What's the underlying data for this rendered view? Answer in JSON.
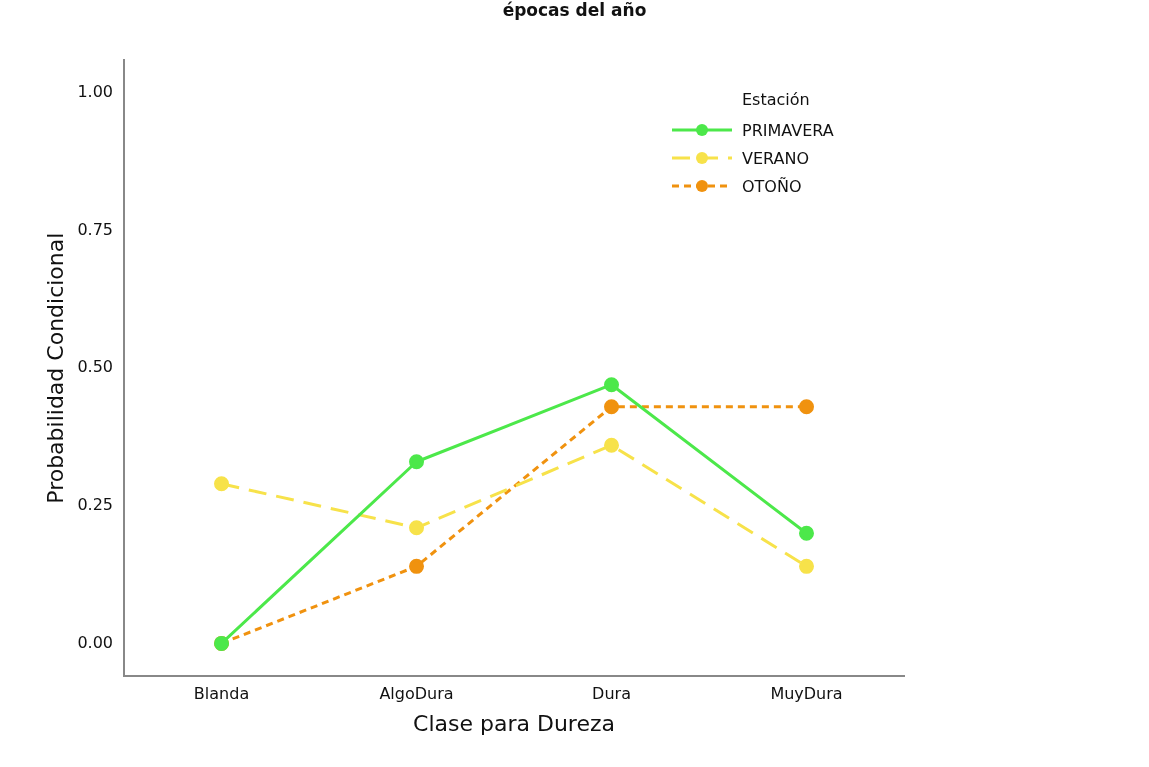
{
  "chart_data": {
    "type": "line",
    "title": "épocas del año",
    "xlabel": "Clase para Dureza",
    "ylabel": "Probabilidad Condicional",
    "legend_title": "Estación",
    "legend": "top right",
    "marker": "circle",
    "grid": false,
    "categories": [
      "Blanda",
      "AlgoDura",
      "Dura",
      "MuyDura"
    ],
    "ylim": [
      -0.06,
      1.06
    ],
    "yticks": [
      {
        "value": 0,
        "label": "0.00"
      },
      {
        "value": 0.25,
        "label": "0.25"
      },
      {
        "value": 0.5,
        "label": "0.50"
      },
      {
        "value": 0.75,
        "label": "0.75"
      },
      {
        "value": 1,
        "label": "1.00"
      }
    ],
    "series": [
      {
        "name": "PRIMAVERA",
        "color": "#4ce84a",
        "line_style": "solid",
        "values": [
          0,
          0.33,
          0.47,
          0.2
        ]
      },
      {
        "name": "VERANO",
        "color": "#f7e24a",
        "line_style": "dashed",
        "values": [
          0.29,
          0.21,
          0.36,
          0.14
        ]
      },
      {
        "name": "OTOÑO",
        "color": "#f0920f",
        "line_style": "dotted",
        "values": [
          0,
          0.14,
          0.43,
          0.43
        ]
      }
    ]
  }
}
